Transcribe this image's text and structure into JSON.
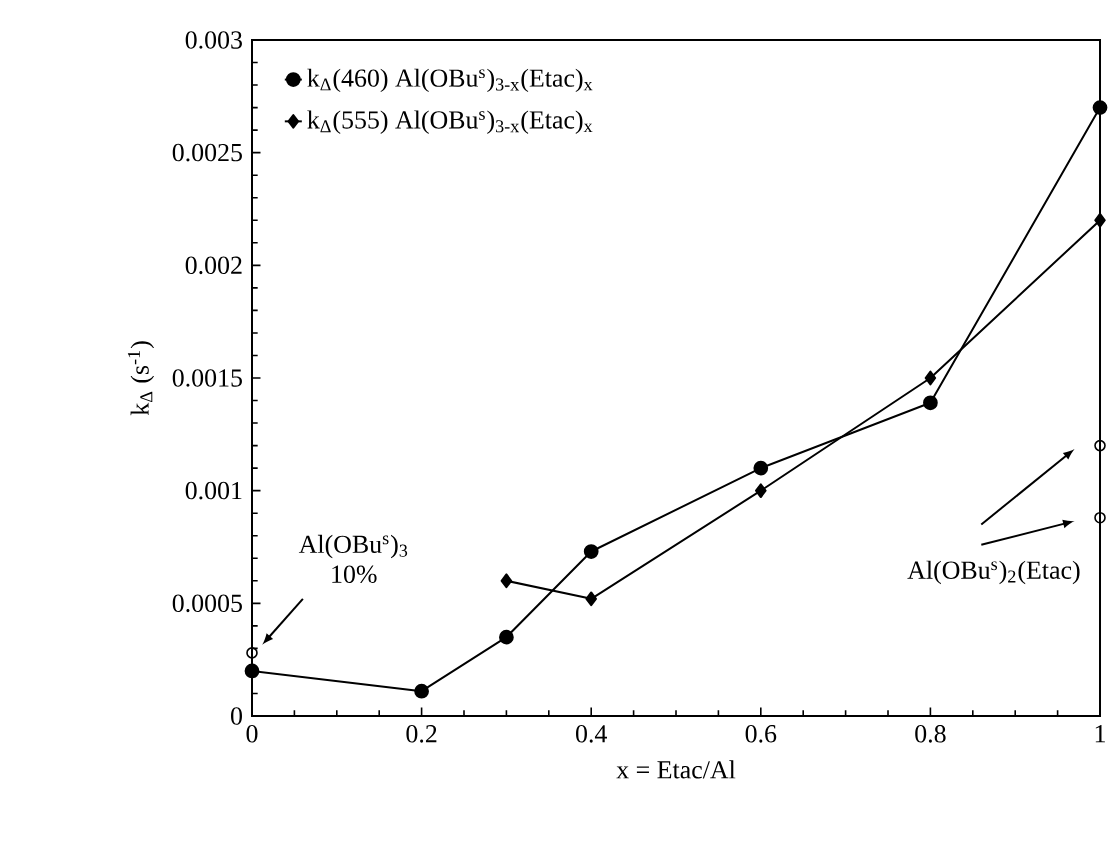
{
  "chart_data": {
    "type": "line",
    "xlabel": "x = Etac/Al",
    "ylabel": "k$_{Δ}$ (s$^{-1}$)",
    "xlim": [
      0,
      1
    ],
    "xticks": [
      0,
      0.2,
      0.4,
      0.6,
      0.8,
      1
    ],
    "ylim": [
      0,
      0.003
    ],
    "yticks": [
      0,
      0.0005,
      0.001,
      0.0015,
      0.002,
      0.0025,
      0.003
    ],
    "legend": "top left",
    "grid": false,
    "series": [
      {
        "name": "k$_{Δ}$(460) Al(OBu$^{s}$)$_{3-x}$(Etac)$_{x}$",
        "color": "#000000",
        "marker": "circle",
        "x": [
          0,
          0.2,
          0.3,
          0.4,
          0.6,
          0.8,
          1
        ],
        "values": [
          0.0002,
          0.00011,
          0.00035,
          0.00073,
          0.0011,
          0.00139,
          0.0027
        ]
      },
      {
        "name": "k$_{Δ}$(555) Al(OBu$^{s}$)$_{3-x}$(Etac)$_{x}$",
        "color": "#000000",
        "marker": "diamond",
        "x": [
          0.3,
          0.4,
          0.6,
          0.8,
          1
        ],
        "values": [
          0.0006,
          0.00052,
          0.001,
          0.0015,
          0.0022
        ]
      },
      {
        "type": "scatter",
        "color": "#000000",
        "marker": "circle",
        "x": [
          0,
          1,
          1
        ],
        "values": [
          0.00028,
          0.0012,
          0.00088
        ]
      }
    ],
    "annotations": [
      "Al(OBu$^{s}$)$_{3}$ 10%",
      "Al(OBu$^{s}$)$_{2}$(Etac)"
    ]
  }
}
